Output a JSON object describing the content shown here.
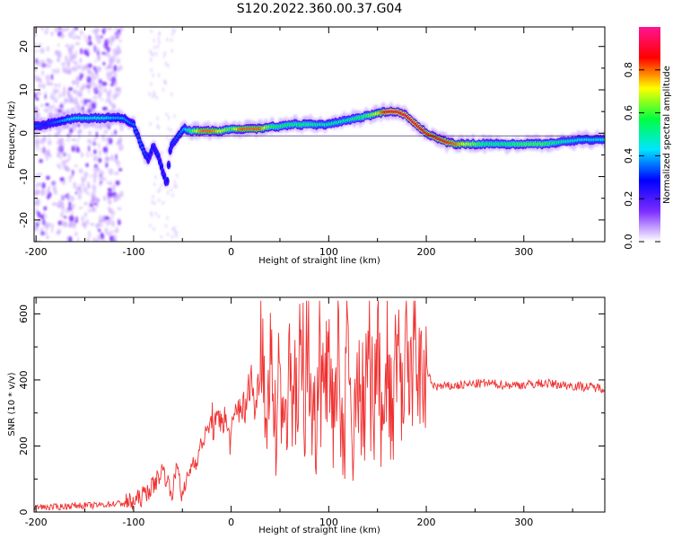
{
  "figure": {
    "title": "S120.2022.360.00.37.G04"
  },
  "colorbar": {
    "label": "Normalized spectral amplitude",
    "ticks": [
      0.0,
      0.2,
      0.4,
      0.6,
      0.8
    ],
    "tick_labels": [
      "0.0",
      "0.2",
      "0.4",
      "0.6",
      "0.8"
    ],
    "range": [
      0,
      1
    ],
    "stops": [
      "#ffffff",
      "#7b2cff",
      "#0000ff",
      "#00e5ff",
      "#00ff40",
      "#ffff00",
      "#ff0000",
      "#ff1493"
    ]
  },
  "chart_data": [
    {
      "type": "heatmap",
      "name": "spectrogram",
      "xlabel": "Height of straight line (km)",
      "ylabel": "Frequency (Hz)",
      "xlim": [
        -202,
        383
      ],
      "ylim": [
        -25,
        24.5
      ],
      "xticks": [
        -200,
        -100,
        0,
        100,
        200,
        300
      ],
      "xtick_labels": [
        "-200",
        "-100",
        "0",
        "100",
        "200",
        "300"
      ],
      "yticks": [
        -20,
        -10,
        0,
        10,
        20
      ],
      "ytick_labels": [
        "-20",
        "-10",
        "0",
        "10",
        "20"
      ],
      "ridge": {
        "x": [
          -202,
          -190,
          -180,
          -170,
          -160,
          -150,
          -140,
          -130,
          -120,
          -110,
          -100,
          -95,
          -90,
          -85,
          -80,
          -75,
          -70,
          -66,
          -62,
          -55,
          -48,
          -40,
          -30,
          -20,
          -10,
          0,
          10,
          20,
          30,
          40,
          50,
          60,
          70,
          80,
          90,
          100,
          110,
          120,
          130,
          140,
          150,
          160,
          170,
          180,
          190,
          200,
          210,
          220,
          230,
          240,
          260,
          280,
          300,
          320,
          340,
          360,
          383
        ],
        "y": [
          1.5,
          2.0,
          2.5,
          3.0,
          3.5,
          3.5,
          3.5,
          3.5,
          3.5,
          3.5,
          2.0,
          -1.0,
          -4.0,
          -6.0,
          -3.0,
          -5.0,
          -9.0,
          -12.0,
          -3.0,
          -1.0,
          1.0,
          0.5,
          0.5,
          0.5,
          0.5,
          1.0,
          1.0,
          1.0,
          1.0,
          1.5,
          1.5,
          2.0,
          2.0,
          2.0,
          2.0,
          2.0,
          2.5,
          3.0,
          3.5,
          4.0,
          4.5,
          5.0,
          5.0,
          4.0,
          2.0,
          0.0,
          -1.0,
          -2.0,
          -2.5,
          -2.5,
          -2.5,
          -2.5,
          -2.5,
          -2.5,
          -2.0,
          -1.5,
          -1.5
        ],
        "amplitude": [
          0.35,
          0.3,
          0.35,
          0.4,
          0.45,
          0.45,
          0.45,
          0.45,
          0.4,
          0.4,
          0.35,
          0.35,
          0.35,
          0.3,
          0.3,
          0.3,
          0.3,
          0.3,
          0.3,
          0.35,
          0.4,
          0.6,
          0.8,
          0.8,
          0.7,
          0.6,
          0.8,
          0.8,
          0.8,
          0.6,
          0.55,
          0.55,
          0.55,
          0.55,
          0.5,
          0.5,
          0.5,
          0.5,
          0.55,
          0.6,
          0.7,
          0.9,
          0.9,
          0.9,
          0.9,
          0.85,
          0.85,
          0.85,
          0.8,
          0.7,
          0.55,
          0.55,
          0.6,
          0.6,
          0.5,
          0.45,
          0.45
        ]
      }
    },
    {
      "type": "line",
      "name": "snr",
      "xlabel": "Height of straight line (km)",
      "ylabel": "SNR (10 * v/v)",
      "xlim": [
        -202,
        383
      ],
      "ylim": [
        0,
        650
      ],
      "xticks": [
        -200,
        -100,
        0,
        100,
        200,
        300
      ],
      "xtick_labels": [
        "-200",
        "-100",
        "0",
        "100",
        "200",
        "300"
      ],
      "yticks": [
        0,
        200,
        400,
        600
      ],
      "ytick_labels": [
        "0",
        "200",
        "400",
        "600"
      ],
      "color": "#f03030",
      "x": [
        -202,
        -180,
        -160,
        -140,
        -120,
        -100,
        -90,
        -80,
        -70,
        -65,
        -60,
        -55,
        -50,
        -45,
        -40,
        -35,
        -30,
        -25,
        -20,
        -15,
        -10,
        -5,
        0,
        5,
        10,
        15,
        20,
        25,
        30,
        35,
        40,
        45,
        50,
        55,
        60,
        65,
        70,
        75,
        80,
        85,
        90,
        95,
        100,
        105,
        110,
        115,
        120,
        125,
        130,
        135,
        140,
        145,
        150,
        155,
        160,
        165,
        170,
        175,
        180,
        185,
        190,
        195,
        200,
        205,
        210,
        220,
        240,
        260,
        280,
        300,
        320,
        340,
        360,
        383
      ],
      "y": [
        15,
        15,
        20,
        20,
        25,
        30,
        50,
        80,
        130,
        90,
        60,
        150,
        40,
        100,
        150,
        160,
        210,
        240,
        280,
        250,
        300,
        260,
        220,
        300,
        330,
        300,
        420,
        300,
        460,
        300,
        380,
        320,
        460,
        260,
        410,
        320,
        470,
        220,
        520,
        200,
        430,
        300,
        540,
        180,
        500,
        150,
        580,
        200,
        420,
        160,
        560,
        140,
        600,
        120,
        500,
        220,
        520,
        300,
        480,
        360,
        450,
        400,
        440,
        390,
        380,
        380,
        385,
        390,
        385,
        385,
        390,
        385,
        380,
        375
      ]
    }
  ]
}
